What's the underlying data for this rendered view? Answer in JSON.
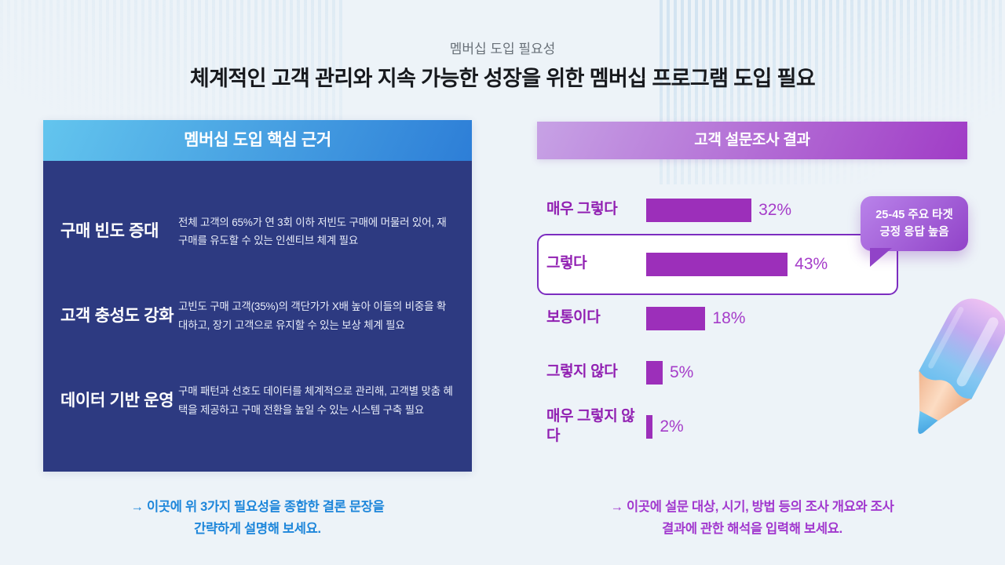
{
  "page": {
    "eyebrow": "멤버십 도입 필요성",
    "title": "체계적인 고객 관리와 지속 가능한 성장을 위한 멤버십 프로그램 도입 필요"
  },
  "icons": {
    "arrow": "→"
  },
  "left_panel": {
    "header": "멤버십 도입 핵심 근거",
    "rows": [
      {
        "title": "구매 빈도 증대",
        "desc": "전체 고객의 65%가 연 3회 이하 저빈도 구매에 머물러 있어, 재구매를 유도할 수 있는 인센티브 체계 필요"
      },
      {
        "title": "고객 충성도 강화",
        "desc": "고빈도 구매 고객(35%)의 객단가가 X배 높아 이들의 비중을 확대하고, 장기 고객으로 유지할 수 있는 보상 체계 필요"
      },
      {
        "title": "데이터 기반 운영",
        "desc": "구매 패턴과 선호도 데이터를 체계적으로 관리해, 고객별 맞춤 혜택을 제공하고 구매 전환을 높일 수 있는 시스템 구축 필요"
      }
    ],
    "footer_line1": "이곳에 위 3가지 필요성을 종합한 결론 문장을",
    "footer_line2": "간략하게 설명해 보세요."
  },
  "right_panel": {
    "footer_line1": "이곳에 설문 대상, 시기, 방법 등의 조사 개요와 조사",
    "footer_line2": "결과에 관한 해석을 입력해 보세요."
  },
  "chart_data": {
    "type": "bar",
    "orientation": "horizontal",
    "title": "고객 설문조사 결과",
    "categories": [
      "매우 그렇다",
      "그렇다",
      "보통이다",
      "그렇지 않다",
      "매우 그렇지 않다"
    ],
    "values": [
      32,
      43,
      18,
      5,
      2
    ],
    "unit": "%",
    "xlim": [
      0,
      100
    ],
    "highlighted_category": "그렇다",
    "annotation": {
      "line1": "25-45 주요 타겟",
      "line2": "긍정 응답 높음",
      "attached_to": "그렇다"
    }
  },
  "colors": {
    "bg": "#edf3f8",
    "stripe": "#cfe2f0",
    "eyebrow": "#687078",
    "title": "#17191d",
    "left_header_from": "#63c5ee",
    "left_header_to": "#2d7ed7",
    "left_body": "#2d3a81",
    "left_desc": "#e9edf9",
    "right_header_from": "#c7a2e5",
    "right_header_to": "#a03cc6",
    "bar": "#9c2fba",
    "chart_label": "#9120b2",
    "chart_value": "#a53cc9",
    "highlight_border": "#7c2dc0",
    "callout_from": "#b983ea",
    "callout_to": "#9143c8",
    "footer_left": "#1d86da",
    "footer_right": "#a138ce"
  }
}
